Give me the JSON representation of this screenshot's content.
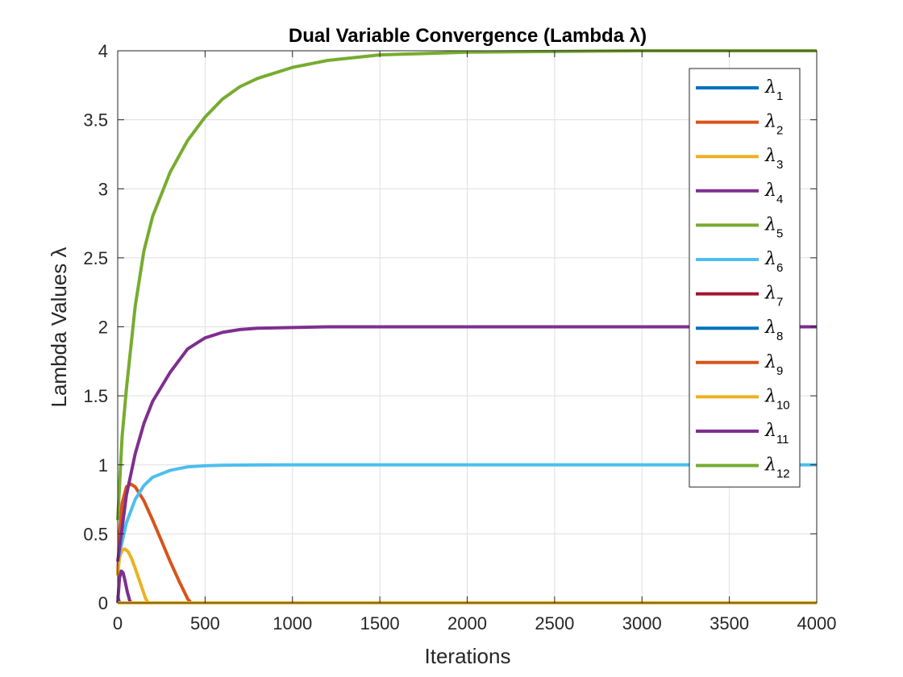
{
  "chart_data": {
    "type": "line",
    "title": "Dual Variable Convergence (Lambda λ)",
    "xlabel": "Iterations",
    "ylabel": "Lambda Values λ",
    "xlim": [
      0,
      4000
    ],
    "ylim": [
      0,
      4
    ],
    "xticks": [
      "0",
      "500",
      "1000",
      "1500",
      "2000",
      "2500",
      "3000",
      "3500",
      "4000"
    ],
    "yticks": [
      "0",
      "0.5",
      "1",
      "1.5",
      "2",
      "2.5",
      "3",
      "3.5",
      "4"
    ],
    "grid": true,
    "legend_position": "top-right",
    "series": [
      {
        "name": "λ1",
        "base": "λ",
        "sub": "1",
        "color": "#0072BD",
        "x": [
          0,
          10,
          4000
        ],
        "y": [
          0.05,
          0,
          0
        ]
      },
      {
        "name": "λ2",
        "base": "λ",
        "sub": "2",
        "color": "#D95319",
        "x": [
          0,
          10,
          25,
          50,
          75,
          100,
          150,
          200,
          250,
          300,
          350,
          400,
          420,
          4000
        ],
        "y": [
          0.2,
          0.5,
          0.72,
          0.84,
          0.86,
          0.84,
          0.74,
          0.6,
          0.45,
          0.3,
          0.16,
          0.03,
          0,
          0
        ]
      },
      {
        "name": "λ3",
        "base": "λ",
        "sub": "3",
        "color": "#EDB120",
        "x": [
          0,
          10,
          25,
          40,
          60,
          80,
          100,
          130,
          160,
          175,
          4000
        ],
        "y": [
          0.2,
          0.33,
          0.38,
          0.39,
          0.37,
          0.32,
          0.25,
          0.14,
          0.03,
          0,
          0
        ]
      },
      {
        "name": "λ4",
        "base": "λ",
        "sub": "4",
        "color": "#7E2F8E",
        "x": [
          0,
          10,
          20,
          30,
          40,
          55,
          70,
          80,
          4000
        ],
        "y": [
          0,
          0.18,
          0.23,
          0.22,
          0.17,
          0.08,
          0.01,
          0,
          0
        ]
      },
      {
        "name": "λ5",
        "base": "λ",
        "sub": "5",
        "color": "#77AC30",
        "x": [
          0,
          4000
        ],
        "y": [
          0,
          0
        ]
      },
      {
        "name": "λ6",
        "base": "λ",
        "sub": "6",
        "color": "#4DBEEE",
        "x": [
          0,
          50,
          100,
          150,
          200,
          300,
          400,
          500,
          600,
          800,
          1000,
          4000
        ],
        "y": [
          0.3,
          0.58,
          0.75,
          0.85,
          0.91,
          0.96,
          0.985,
          0.993,
          0.997,
          0.999,
          1.0,
          1.0
        ]
      },
      {
        "name": "λ7",
        "base": "λ",
        "sub": "7",
        "color": "#A2142F",
        "x": [
          0,
          4000
        ],
        "y": [
          0,
          0
        ]
      },
      {
        "name": "λ8",
        "base": "λ",
        "sub": "8",
        "color": "#0072BD",
        "x": [
          0,
          4000
        ],
        "y": [
          0,
          0
        ]
      },
      {
        "name": "λ9",
        "base": "λ",
        "sub": "9",
        "color": "#D95319",
        "x": [
          0,
          4000
        ],
        "y": [
          0,
          0
        ]
      },
      {
        "name": "λ10",
        "base": "λ",
        "sub": "10",
        "color": "#EDB120",
        "x": [
          0,
          4000
        ],
        "y": [
          0,
          0
        ]
      },
      {
        "name": "λ11",
        "base": "λ",
        "sub": "11",
        "color": "#7E2F8E",
        "x": [
          0,
          50,
          100,
          150,
          200,
          300,
          400,
          500,
          600,
          700,
          800,
          1000,
          1200,
          1500,
          4000
        ],
        "y": [
          0.3,
          0.78,
          1.08,
          1.3,
          1.46,
          1.67,
          1.84,
          1.92,
          1.96,
          1.98,
          1.99,
          1.995,
          2.0,
          2.0,
          2.0
        ]
      },
      {
        "name": "λ12",
        "base": "λ",
        "sub": "12",
        "color": "#77AC30",
        "x": [
          0,
          25,
          50,
          100,
          150,
          200,
          300,
          400,
          500,
          600,
          700,
          800,
          1000,
          1200,
          1500,
          2000,
          2500,
          3000,
          4000
        ],
        "y": [
          0.6,
          1.2,
          1.55,
          2.15,
          2.55,
          2.8,
          3.12,
          3.35,
          3.52,
          3.65,
          3.74,
          3.8,
          3.88,
          3.93,
          3.97,
          3.99,
          3.995,
          4.0,
          4.0
        ]
      }
    ]
  }
}
